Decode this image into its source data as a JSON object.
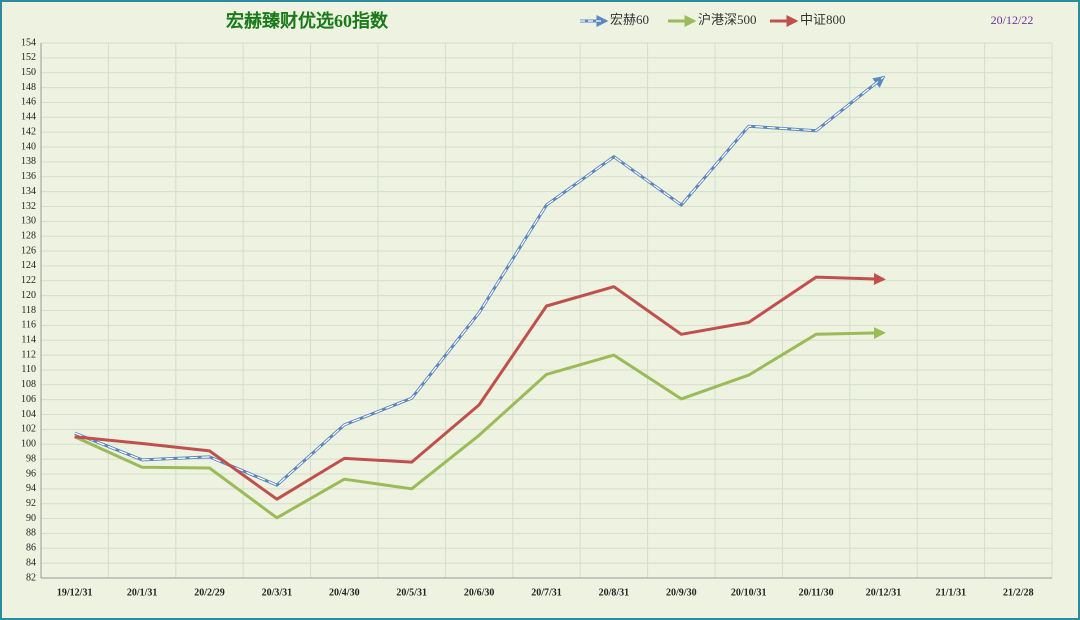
{
  "chart_data": {
    "type": "line",
    "title": "宏赫臻财优选60指数",
    "annotation": "20/12/22",
    "categories": [
      "19/12/31",
      "20/1/31",
      "20/2/29",
      "20/3/31",
      "20/4/30",
      "20/5/31",
      "20/6/30",
      "20/7/31",
      "20/8/31",
      "20/9/30",
      "20/10/31",
      "20/11/30",
      "20/12/31",
      "21/1/31",
      "21/2/28"
    ],
    "series": [
      {
        "name": "宏赫60",
        "color": "#5b86c0",
        "dashed": true,
        "values": [
          101.5,
          97.9,
          98.3,
          94.5,
          102.6,
          106.2,
          117.7,
          132.2,
          138.7,
          132.2,
          142.8,
          142.2,
          149.4,
          null,
          null
        ]
      },
      {
        "name": "沪港深500",
        "color": "#9bbb59",
        "values": [
          101,
          96.9,
          96.8,
          90.1,
          95.3,
          94,
          101.2,
          109.4,
          112,
          106.1,
          109.3,
          114.8,
          115,
          null,
          null
        ]
      },
      {
        "name": "中证800",
        "color": "#c0504d",
        "values": [
          101,
          100.1,
          99.1,
          92.6,
          98.1,
          97.6,
          105.3,
          118.6,
          121.2,
          114.8,
          116.4,
          122.5,
          122.2,
          null,
          null
        ]
      }
    ],
    "ylim": [
      82,
      154
    ],
    "yticks": [
      82,
      84,
      86,
      88,
      90,
      92,
      94,
      96,
      98,
      100,
      102,
      104,
      106,
      108,
      110,
      112,
      114,
      116,
      118,
      120,
      122,
      124,
      126,
      128,
      130,
      132,
      134,
      136,
      138,
      140,
      142,
      144,
      146,
      148,
      150,
      152,
      154
    ],
    "grid": true
  }
}
